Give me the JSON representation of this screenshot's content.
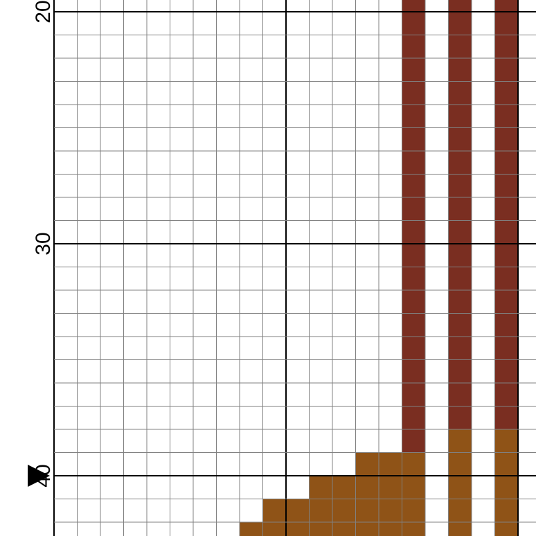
{
  "pattern": {
    "cell_rows_visible": [
      19.5,
      42.5
    ],
    "cell_cols_visible": [
      0,
      21
    ],
    "major_line_every": 10,
    "row_labels": [
      {
        "row": 20,
        "text": "20"
      },
      {
        "row": 30,
        "text": "30"
      },
      {
        "row": 40,
        "text": "40"
      }
    ],
    "marker": {
      "row": 40,
      "shape": "triangle",
      "icon": "triangle-marker-icon"
    },
    "colors": {
      "background": "#ffffff",
      "grid_minor": "#808080",
      "grid_major": "#000000",
      "brick": "#7a2e21",
      "brown": "#8f5317"
    },
    "stitches": [
      {
        "color": "brick",
        "col": 15,
        "row_start": 19,
        "row_end": 39
      },
      {
        "color": "brick",
        "col": 17,
        "row_start": 19,
        "row_end": 38
      },
      {
        "color": "brick",
        "col": 19,
        "row_start": 19,
        "row_end": 38
      },
      {
        "color": "brown",
        "col": 17,
        "row_start": 38,
        "row_end": 43
      },
      {
        "color": "brown",
        "col": 19,
        "row_start": 38,
        "row_end": 43
      },
      {
        "color": "brown",
        "col": 13,
        "row_start": 39,
        "row_end": 43
      },
      {
        "color": "brown",
        "col": 14,
        "row_start": 39,
        "row_end": 43
      },
      {
        "color": "brown",
        "col": 15,
        "row_start": 39,
        "row_end": 43
      },
      {
        "color": "brown",
        "col": 11,
        "row_start": 40,
        "row_end": 43
      },
      {
        "color": "brown",
        "col": 12,
        "row_start": 40,
        "row_end": 43
      },
      {
        "color": "brown",
        "col": 9,
        "row_start": 41,
        "row_end": 43
      },
      {
        "color": "brown",
        "col": 10,
        "row_start": 41,
        "row_end": 43
      },
      {
        "color": "brown",
        "col": 8,
        "row_start": 42,
        "row_end": 43
      }
    ]
  }
}
